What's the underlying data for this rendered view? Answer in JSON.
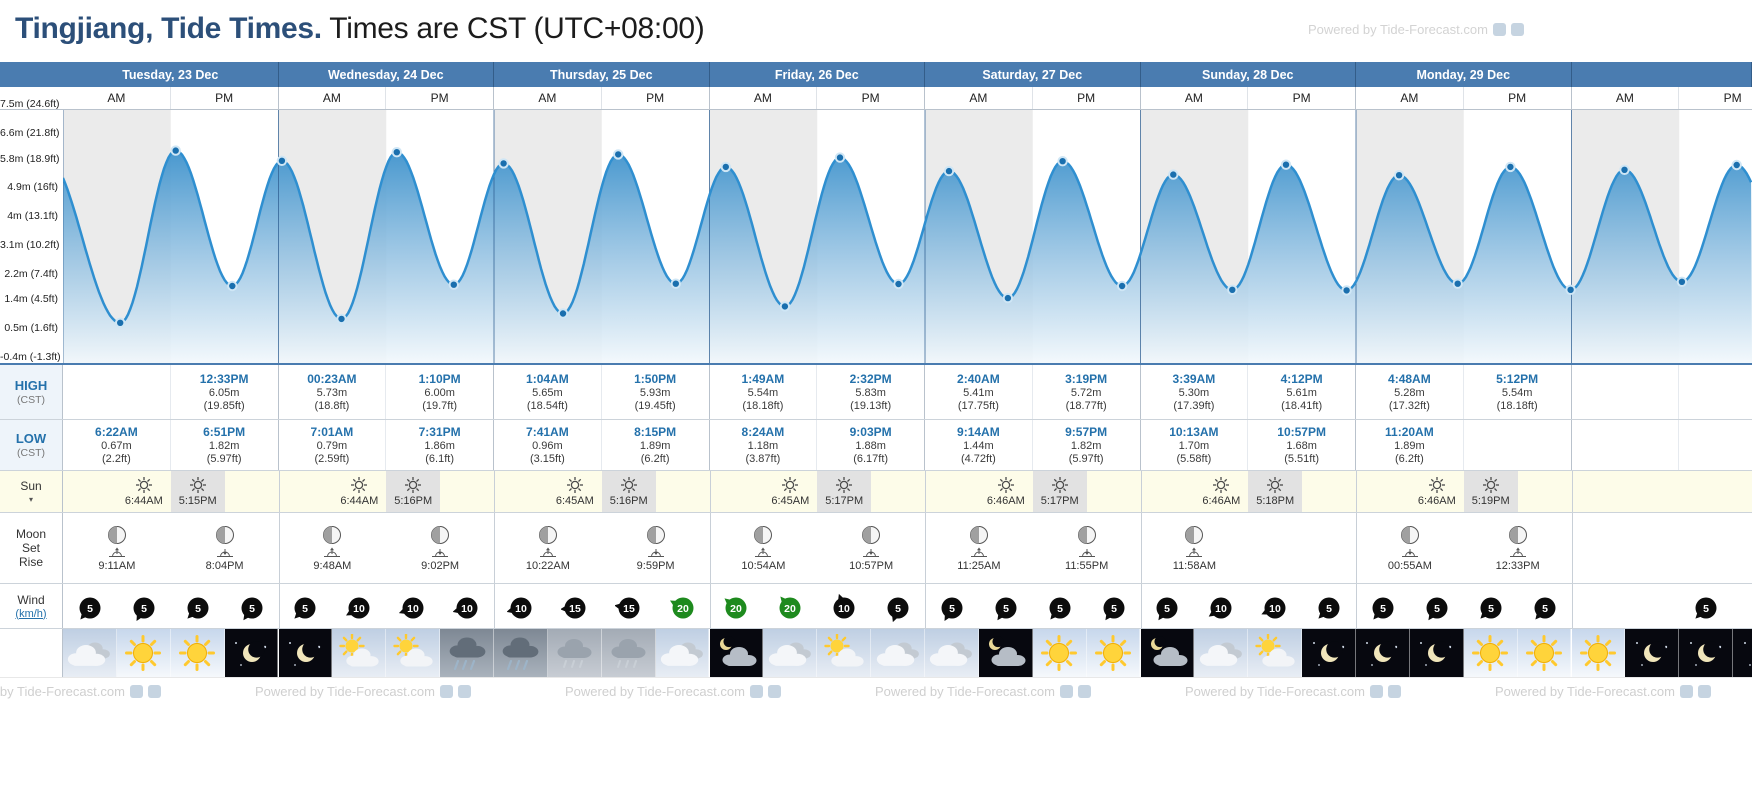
{
  "header": {
    "title_location": "Tingjiang, Tide Times.",
    "title_suffix": " Times are CST (UTC+08:00)",
    "watermark": "Powered by Tide-Forecast.com"
  },
  "columns": {
    "am_label": "AM",
    "pm_label": "PM"
  },
  "row_labels": {
    "high": "HIGH",
    "high_sub": "(CST)",
    "low": "LOW",
    "low_sub": "(CST)",
    "sun": "Sun",
    "moon_lines": [
      "Moon",
      "Set",
      "Rise"
    ],
    "wind": "Wind",
    "wind_unit": "(km/h)"
  },
  "colors": {
    "header_blue": "#4a7cb0",
    "time_blue": "#2471ab",
    "tide_blue": "#3e92cc",
    "band_gray": "#ebebeb",
    "sun_row_bg": "#fdfce9",
    "sunset_cell_bg": "#e2e2e2",
    "wind_black": "#0c0c0c",
    "wind_green": "#1e8a1e",
    "night_bg": "#07080f"
  },
  "days": [
    {
      "label": "Tuesday, 23 Dec",
      "high": {
        "am": null,
        "pm": {
          "time": "12:33PM",
          "m": "6.05m",
          "ft": "(19.85ft)"
        }
      },
      "low": {
        "am": {
          "time": "6:22AM",
          "m": "0.67m",
          "ft": "(2.2ft)"
        },
        "pm": {
          "time": "6:51PM",
          "m": "1.82m",
          "ft": "(5.97ft)"
        }
      },
      "sun": {
        "rise": "6:44AM",
        "set": "5:15PM"
      },
      "moon": {
        "am": {
          "event": "rise",
          "time": "9:11AM",
          "phase": "waxing-crescent"
        },
        "pm": {
          "event": "set",
          "time": "8:04PM",
          "phase": "waxing-crescent"
        }
      },
      "wind": [
        {
          "speed": 5,
          "dir": 220
        },
        {
          "speed": 5,
          "dir": 210
        },
        {
          "speed": 5,
          "dir": 225
        },
        {
          "speed": 5,
          "dir": 215
        }
      ],
      "weather": [
        "cloudy-day",
        "sunny",
        "sunny",
        "clear-night"
      ]
    },
    {
      "label": "Wednesday, 24 Dec",
      "high": {
        "am": {
          "time": "00:23AM",
          "m": "5.73m",
          "ft": "(18.8ft)"
        },
        "pm": {
          "time": "1:10PM",
          "m": "6.00m",
          "ft": "(19.7ft)"
        }
      },
      "low": {
        "am": {
          "time": "7:01AM",
          "m": "0.79m",
          "ft": "(2.59ft)"
        },
        "pm": {
          "time": "7:31PM",
          "m": "1.86m",
          "ft": "(6.1ft)"
        }
      },
      "sun": {
        "rise": "6:44AM",
        "set": "5:16PM"
      },
      "moon": {
        "am": {
          "event": "rise",
          "time": "9:48AM",
          "phase": "waxing-crescent"
        },
        "pm": {
          "event": "set",
          "time": "9:02PM",
          "phase": "waxing-crescent"
        }
      },
      "wind": [
        {
          "speed": 5,
          "dir": 225
        },
        {
          "speed": 10,
          "dir": 240
        },
        {
          "speed": 10,
          "dir": 250
        },
        {
          "speed": 10,
          "dir": 255
        }
      ],
      "weather": [
        "clear-night",
        "partly-sunny",
        "partly-sunny",
        "rain"
      ]
    },
    {
      "label": "Thursday, 25 Dec",
      "high": {
        "am": {
          "time": "1:04AM",
          "m": "5.65m",
          "ft": "(18.54ft)"
        },
        "pm": {
          "time": "1:50PM",
          "m": "5.93m",
          "ft": "(19.45ft)"
        }
      },
      "low": {
        "am": {
          "time": "7:41AM",
          "m": "0.96m",
          "ft": "(3.15ft)"
        },
        "pm": {
          "time": "8:15PM",
          "m": "1.89m",
          "ft": "(6.2ft)"
        }
      },
      "sun": {
        "rise": "6:45AM",
        "set": "5:16PM"
      },
      "moon": {
        "am": {
          "event": "rise",
          "time": "10:22AM",
          "phase": "waxing-crescent"
        },
        "pm": {
          "event": "set",
          "time": "9:59PM",
          "phase": "waxing-crescent"
        }
      },
      "wind": [
        {
          "speed": 10,
          "dir": 255
        },
        {
          "speed": 15,
          "dir": 265
        },
        {
          "speed": 15,
          "dir": 280
        },
        {
          "speed": 20,
          "dir": 300
        }
      ],
      "weather": [
        "rain",
        "drizzle",
        "drizzle",
        "cloudy-day"
      ]
    },
    {
      "label": "Friday, 26 Dec",
      "high": {
        "am": {
          "time": "1:49AM",
          "m": "5.54m",
          "ft": "(18.18ft)"
        },
        "pm": {
          "time": "2:32PM",
          "m": "5.83m",
          "ft": "(19.13ft)"
        }
      },
      "low": {
        "am": {
          "time": "8:24AM",
          "m": "1.18m",
          "ft": "(3.87ft)"
        },
        "pm": {
          "time": "9:03PM",
          "m": "1.88m",
          "ft": "(6.17ft)"
        }
      },
      "sun": {
        "rise": "6:45AM",
        "set": "5:17PM"
      },
      "moon": {
        "am": {
          "event": "rise",
          "time": "10:54AM",
          "phase": "waxing-crescent"
        },
        "pm": {
          "event": "set",
          "time": "10:57PM",
          "phase": "waxing-crescent"
        }
      },
      "wind": [
        {
          "speed": 20,
          "dir": 310
        },
        {
          "speed": 20,
          "dir": 320
        },
        {
          "speed": 10,
          "dir": 340
        },
        {
          "speed": 5,
          "dir": 200
        }
      ],
      "weather": [
        "cloudy-night",
        "cloudy-day",
        "partly-sunny",
        "cloudy-day"
      ]
    },
    {
      "label": "Saturday, 27 Dec",
      "high": {
        "am": {
          "time": "2:40AM",
          "m": "5.41m",
          "ft": "(17.75ft)"
        },
        "pm": {
          "time": "3:19PM",
          "m": "5.72m",
          "ft": "(18.77ft)"
        }
      },
      "low": {
        "am": {
          "time": "9:14AM",
          "m": "1.44m",
          "ft": "(4.72ft)"
        },
        "pm": {
          "time": "9:57PM",
          "m": "1.82m",
          "ft": "(5.97ft)"
        }
      },
      "sun": {
        "rise": "6:46AM",
        "set": "5:17PM"
      },
      "moon": {
        "am": {
          "event": "rise",
          "time": "11:25AM",
          "phase": "waxing-crescent"
        },
        "pm": {
          "event": "set",
          "time": "11:55PM",
          "phase": "waxing-crescent"
        }
      },
      "wind": [
        {
          "speed": 5,
          "dir": 210
        },
        {
          "speed": 5,
          "dir": 215
        },
        {
          "speed": 5,
          "dir": 220
        },
        {
          "speed": 5,
          "dir": 215
        }
      ],
      "weather": [
        "cloudy-day",
        "cloudy-night",
        "sunny",
        "sunny"
      ]
    },
    {
      "label": "Sunday, 28 Dec",
      "high": {
        "am": {
          "time": "3:39AM",
          "m": "5.30m",
          "ft": "(17.39ft)"
        },
        "pm": {
          "time": "4:12PM",
          "m": "5.61m",
          "ft": "(18.41ft)"
        }
      },
      "low": {
        "am": {
          "time": "10:13AM",
          "m": "1.70m",
          "ft": "(5.58ft)"
        },
        "pm": {
          "time": "10:57PM",
          "m": "1.68m",
          "ft": "(5.51ft)"
        }
      },
      "sun": {
        "rise": "6:46AM",
        "set": "5:18PM"
      },
      "moon": {
        "am": {
          "event": "rise",
          "time": "11:58AM",
          "phase": "first-quarter"
        },
        "pm": null
      },
      "wind": [
        {
          "speed": 5,
          "dir": 215
        },
        {
          "speed": 10,
          "dir": 235
        },
        {
          "speed": 10,
          "dir": 245
        },
        {
          "speed": 5,
          "dir": 225
        }
      ],
      "weather": [
        "cloudy-night",
        "cloudy-day",
        "partly-sunny",
        "clear-night"
      ]
    },
    {
      "label": "Monday, 29 Dec",
      "high": {
        "am": {
          "time": "4:48AM",
          "m": "5.28m",
          "ft": "(17.32ft)"
        },
        "pm": {
          "time": "5:12PM",
          "m": "5.54m",
          "ft": "(18.18ft)"
        }
      },
      "low": {
        "am": {
          "time": "11:20AM",
          "m": "1.89m",
          "ft": "(6.2ft)"
        },
        "pm": null
      },
      "sun": {
        "rise": "6:46AM",
        "set": "5:19PM"
      },
      "moon": {
        "am": {
          "event": "set",
          "time": "00:55AM",
          "phase": "first-quarter"
        },
        "pm": {
          "event": "rise",
          "time": "12:33PM",
          "phase": "first-quarter"
        }
      },
      "wind": [
        {
          "speed": 5,
          "dir": 220
        },
        {
          "speed": 5,
          "dir": 215
        },
        {
          "speed": 5,
          "dir": 225
        },
        {
          "speed": 5,
          "dir": 220
        }
      ],
      "weather": [
        "clear-night",
        "clear-night",
        "sunny",
        "sunny"
      ]
    },
    {
      "label": "",
      "high": {
        "am": null,
        "pm": null
      },
      "low": {
        "am": null,
        "pm": null
      },
      "sun": null,
      "moon": {
        "am": null,
        "pm": null
      },
      "wind": [
        null,
        null,
        {
          "speed": 5,
          "dir": 225
        },
        null
      ],
      "weather": [
        "sunny",
        "clear-night",
        "clear-night",
        "clear-night"
      ]
    }
  ],
  "chart_data": {
    "type": "area",
    "title": "Tide height curve for Tingjiang",
    "y_unit": "m",
    "hours_origin": "Tuesday 23 Dec 00:00 CST",
    "x_range_hours": [
      0,
      188.13
    ],
    "grid": "alternating AM/PM vertical bands, dark day-boundary lines, no horizontal gridlines",
    "y_axis": [
      {
        "value": 7.5,
        "label": "7.5m (24.6ft)"
      },
      {
        "value": 6.6,
        "label": "6.6m (21.8ft)"
      },
      {
        "value": 5.8,
        "label": "5.8m (18.9ft)"
      },
      {
        "value": 4.9,
        "label": "4.9m (16ft)"
      },
      {
        "value": 4.0,
        "label": "4m (13.1ft)"
      },
      {
        "value": 3.1,
        "label": "3.1m (10.2ft)"
      },
      {
        "value": 2.2,
        "label": "2.2m (7.4ft)"
      },
      {
        "value": 1.4,
        "label": "1.4m (4.5ft)"
      },
      {
        "value": 0.5,
        "label": "0.5m (1.6ft)"
      },
      {
        "value": -0.4,
        "label": "-0.4m (-1.3ft)"
      }
    ],
    "extremes": [
      {
        "t_hours": -2.0,
        "height_m": 5.9,
        "type": "high",
        "estimated": true
      },
      {
        "t_hours": 6.37,
        "height_m": 0.67,
        "type": "low",
        "time": "6:22AM"
      },
      {
        "t_hours": 12.55,
        "height_m": 6.05,
        "type": "high",
        "time": "12:33PM"
      },
      {
        "t_hours": 18.85,
        "height_m": 1.82,
        "type": "low",
        "time": "6:51PM"
      },
      {
        "t_hours": 24.38,
        "height_m": 5.73,
        "type": "high",
        "time": "00:23AM"
      },
      {
        "t_hours": 31.02,
        "height_m": 0.79,
        "type": "low",
        "time": "7:01AM"
      },
      {
        "t_hours": 37.17,
        "height_m": 6.0,
        "type": "high",
        "time": "1:10PM"
      },
      {
        "t_hours": 43.52,
        "height_m": 1.86,
        "type": "low",
        "time": "7:31PM"
      },
      {
        "t_hours": 49.07,
        "height_m": 5.65,
        "type": "high",
        "time": "1:04AM"
      },
      {
        "t_hours": 55.68,
        "height_m": 0.96,
        "type": "low",
        "time": "7:41AM"
      },
      {
        "t_hours": 61.83,
        "height_m": 5.93,
        "type": "high",
        "time": "1:50PM"
      },
      {
        "t_hours": 68.25,
        "height_m": 1.89,
        "type": "low",
        "time": "8:15PM"
      },
      {
        "t_hours": 73.82,
        "height_m": 5.54,
        "type": "high",
        "time": "1:49AM"
      },
      {
        "t_hours": 80.4,
        "height_m": 1.18,
        "type": "low",
        "time": "8:24AM"
      },
      {
        "t_hours": 86.53,
        "height_m": 5.83,
        "type": "high",
        "time": "2:32PM"
      },
      {
        "t_hours": 93.05,
        "height_m": 1.88,
        "type": "low",
        "time": "9:03PM"
      },
      {
        "t_hours": 98.67,
        "height_m": 5.41,
        "type": "high",
        "time": "2:40AM"
      },
      {
        "t_hours": 105.23,
        "height_m": 1.44,
        "type": "low",
        "time": "9:14AM"
      },
      {
        "t_hours": 111.32,
        "height_m": 5.72,
        "type": "high",
        "time": "3:19PM"
      },
      {
        "t_hours": 117.95,
        "height_m": 1.82,
        "type": "low",
        "time": "9:57PM"
      },
      {
        "t_hours": 123.65,
        "height_m": 5.3,
        "type": "high",
        "time": "3:39AM"
      },
      {
        "t_hours": 130.22,
        "height_m": 1.7,
        "type": "low",
        "time": "10:13AM"
      },
      {
        "t_hours": 136.2,
        "height_m": 5.61,
        "type": "high",
        "time": "4:12PM"
      },
      {
        "t_hours": 142.95,
        "height_m": 1.68,
        "type": "low",
        "time": "10:57PM"
      },
      {
        "t_hours": 148.8,
        "height_m": 5.28,
        "type": "high",
        "time": "4:48AM"
      },
      {
        "t_hours": 155.33,
        "height_m": 1.89,
        "type": "low",
        "time": "11:20AM"
      },
      {
        "t_hours": 161.2,
        "height_m": 5.54,
        "type": "high",
        "time": "5:12PM"
      },
      {
        "t_hours": 167.9,
        "height_m": 1.7,
        "type": "low",
        "estimated": true
      },
      {
        "t_hours": 173.9,
        "height_m": 5.45,
        "type": "high",
        "estimated": true
      },
      {
        "t_hours": 180.3,
        "height_m": 1.95,
        "type": "low",
        "estimated": true
      },
      {
        "t_hours": 186.4,
        "height_m": 5.6,
        "type": "high",
        "estimated": true
      },
      {
        "t_hours": 192.8,
        "height_m": 1.9,
        "type": "low",
        "estimated": true
      }
    ]
  },
  "footer": {
    "watermark": "Powered by Tide-Forecast.com"
  }
}
